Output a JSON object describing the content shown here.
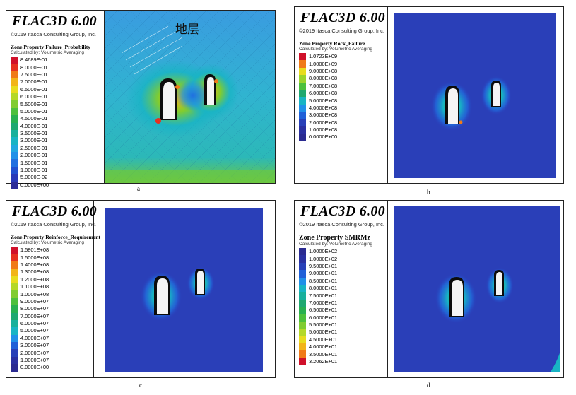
{
  "panels": [
    {
      "title": "FLAC3D 6.00",
      "copyright": "©2019 Itasca Consulting Group, Inc.",
      "property": "Zone Property Failure_Probability",
      "calc_note": "Calculated by: Volumetric Averaging",
      "caption": "a",
      "annotation": "地层",
      "legend": [
        {
          "label": "8.4689E-01",
          "color": "#d0102a"
        },
        {
          "label": "8.0000E-01",
          "color": "#e63020"
        },
        {
          "label": "7.5000E-01",
          "color": "#f07a18"
        },
        {
          "label": "7.0000E-01",
          "color": "#f2b418"
        },
        {
          "label": "6.5000E-01",
          "color": "#e8dc1e"
        },
        {
          "label": "6.0000E-01",
          "color": "#b4d828"
        },
        {
          "label": "5.5000E-01",
          "color": "#80cc30"
        },
        {
          "label": "5.0000E-01",
          "color": "#4cc03c"
        },
        {
          "label": "4.5000E-01",
          "color": "#28b050"
        },
        {
          "label": "4.0000E-01",
          "color": "#1ea870"
        },
        {
          "label": "3.5000E-01",
          "color": "#18b09c"
        },
        {
          "label": "3.0000E-01",
          "color": "#18b4c4"
        },
        {
          "label": "2.5000E-01",
          "color": "#20a8e0"
        },
        {
          "label": "2.0000E-01",
          "color": "#2090e8"
        },
        {
          "label": "1.5000E-01",
          "color": "#2070e0"
        },
        {
          "label": "1.0000E-01",
          "color": "#2050d0"
        },
        {
          "label": "5.0000E-02",
          "color": "#2838b8"
        },
        {
          "label": "0.0000E+00",
          "color": "#2a2a98"
        }
      ]
    },
    {
      "title": "FLAC3D 6.00",
      "copyright": "©2019 Itasca Consulting Group, Inc.",
      "property": "Zone Property Rock_Failure",
      "calc_note": "Calculated by: Volumetric Averaging",
      "caption": "b",
      "legend": [
        {
          "label": "1.0723E+09",
          "color": "#d0102a"
        },
        {
          "label": "1.0000E+09",
          "color": "#f07a18"
        },
        {
          "label": "9.0000E+08",
          "color": "#e8dc1e"
        },
        {
          "label": "8.0000E+08",
          "color": "#9cd42c"
        },
        {
          "label": "7.0000E+08",
          "color": "#4cc03c"
        },
        {
          "label": "6.0000E+08",
          "color": "#1ea870"
        },
        {
          "label": "5.0000E+08",
          "color": "#18b4c4"
        },
        {
          "label": "4.0000E+08",
          "color": "#2090e8"
        },
        {
          "label": "3.0000E+08",
          "color": "#2060d8"
        },
        {
          "label": "2.0000E+08",
          "color": "#2840b8"
        },
        {
          "label": "1.0000E+08",
          "color": "#2a30a0"
        },
        {
          "label": "0.0000E+00",
          "color": "#2a2a90"
        }
      ]
    },
    {
      "title": "FLAC3D 6.00",
      "copyright": "©2019 Itasca Consulting Group, Inc.",
      "property": "Zone Property Reinforce_Requirement",
      "calc_note": "Calculated by: Volumetric Averaging",
      "caption": "c",
      "legend": [
        {
          "label": "1.5801E+08",
          "color": "#d0102a"
        },
        {
          "label": "1.5000E+08",
          "color": "#e63020"
        },
        {
          "label": "1.4000E+08",
          "color": "#f07a18"
        },
        {
          "label": "1.3000E+08",
          "color": "#f2b418"
        },
        {
          "label": "1.2000E+08",
          "color": "#e8dc1e"
        },
        {
          "label": "1.1000E+08",
          "color": "#b4d828"
        },
        {
          "label": "1.0000E+08",
          "color": "#80cc30"
        },
        {
          "label": "9.0000E+07",
          "color": "#4cc03c"
        },
        {
          "label": "8.0000E+07",
          "color": "#28b050"
        },
        {
          "label": "7.0000E+07",
          "color": "#1ea870"
        },
        {
          "label": "6.0000E+07",
          "color": "#18b09c"
        },
        {
          "label": "5.0000E+07",
          "color": "#18b4c4"
        },
        {
          "label": "4.0000E+07",
          "color": "#2090e8"
        },
        {
          "label": "3.0000E+07",
          "color": "#2060d8"
        },
        {
          "label": "2.0000E+07",
          "color": "#2840b8"
        },
        {
          "label": "1.0000E+07",
          "color": "#2a30a0"
        },
        {
          "label": "0.0000E+00",
          "color": "#2a2a90"
        }
      ]
    },
    {
      "title": "FLAC3D 6.00",
      "copyright": "©2019 Itasca Consulting Group, Inc.",
      "property": "Zone Property SMRMz",
      "calc_note": "Calculated by: Volumetric Averaging",
      "caption": "d",
      "legend": [
        {
          "label": "1.0000E+02",
          "color": "#2a2a90"
        },
        {
          "label": "1.0000E+02",
          "color": "#2a30a0"
        },
        {
          "label": "9.5000E+01",
          "color": "#2840b8"
        },
        {
          "label": "9.0000E+01",
          "color": "#2060d8"
        },
        {
          "label": "8.5000E+01",
          "color": "#2090e8"
        },
        {
          "label": "8.0000E+01",
          "color": "#18b4c4"
        },
        {
          "label": "7.5000E+01",
          "color": "#18b09c"
        },
        {
          "label": "7.0000E+01",
          "color": "#1ea870"
        },
        {
          "label": "6.5000E+01",
          "color": "#28b050"
        },
        {
          "label": "6.0000E+01",
          "color": "#4cc03c"
        },
        {
          "label": "5.5000E+01",
          "color": "#80cc30"
        },
        {
          "label": "5.0000E+01",
          "color": "#b4d828"
        },
        {
          "label": "4.5000E+01",
          "color": "#e8dc1e"
        },
        {
          "label": "4.0000E+01",
          "color": "#f2b418"
        },
        {
          "label": "3.5000E+01",
          "color": "#f07a18"
        },
        {
          "label": "3.2062E+01",
          "color": "#d0102a"
        }
      ]
    }
  ]
}
